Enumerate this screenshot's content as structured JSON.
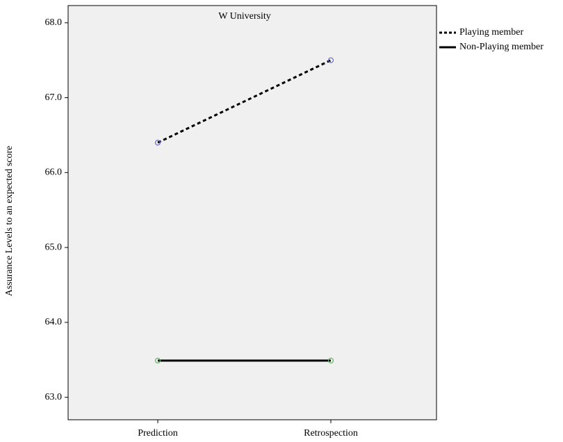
{
  "chart_data": {
    "type": "line",
    "title": "W University",
    "y_label": "Assurance Levels to an expected score",
    "categories": [
      "Prediction",
      "Retrospection"
    ],
    "series": [
      {
        "name": "Playing member",
        "color": "#000000",
        "line_style": "dashed",
        "marker_color": "#6b6bd0",
        "values": [
          66.4,
          67.5
        ]
      },
      {
        "name": "Non-Playing member",
        "color": "#000000",
        "line_style": "solid",
        "marker_color": "#5cb85c",
        "values": [
          63.49,
          63.49
        ]
      }
    ],
    "ylim": [
      62.7,
      68.23
    ],
    "yticks": [
      {
        "value": 63,
        "label": "63.0"
      },
      {
        "value": 64,
        "label": "64.0"
      },
      {
        "value": 65,
        "label": "65.0"
      },
      {
        "value": 66,
        "label": "66.0"
      },
      {
        "value": 67,
        "label": "67.0"
      },
      {
        "value": 68,
        "label": "68.0"
      }
    ],
    "legend": "outside-right"
  }
}
